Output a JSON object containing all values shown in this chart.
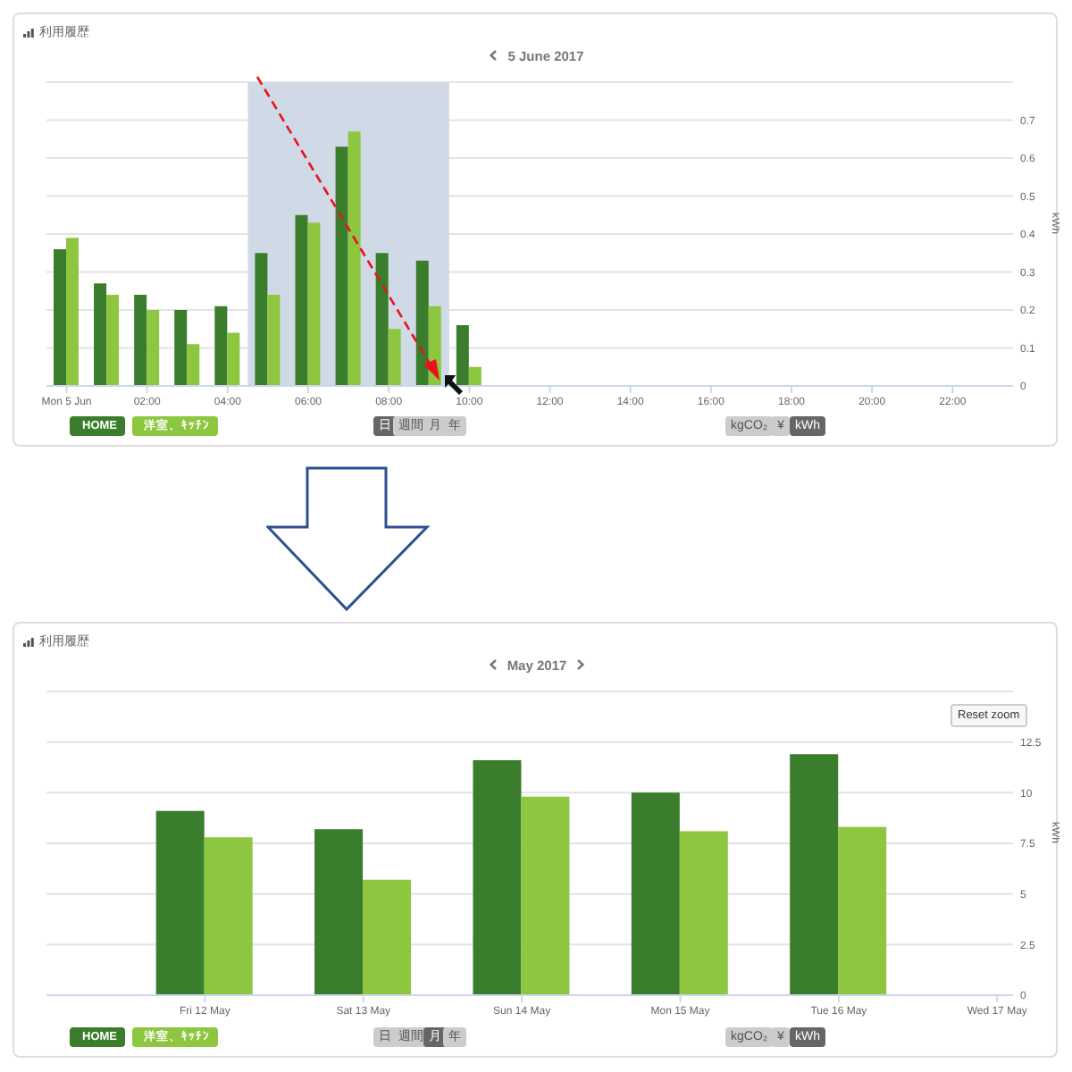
{
  "chart_data": [
    {
      "type": "bar",
      "title": "利用履歴",
      "subtitle": "5 June 2017",
      "ylabel": "kWh",
      "x": [
        0,
        1,
        2,
        3,
        4,
        5,
        6,
        7,
        8,
        9,
        10
      ],
      "series": [
        {
          "name": "HOME",
          "color": "#3a7d2c",
          "values": [
            0.36,
            0.27,
            0.24,
            0.2,
            0.21,
            0.35,
            0.45,
            0.63,
            0.35,
            0.33,
            0.16
          ]
        },
        {
          "name": "洋室、ｷｯﾁﾝ",
          "color": "#8dc63f",
          "values": [
            0.39,
            0.24,
            0.2,
            0.11,
            0.14,
            0.24,
            0.43,
            0.67,
            0.15,
            0.21,
            0.05
          ]
        }
      ],
      "xlim": [
        -0.5,
        23.5
      ],
      "xticks": [
        {
          "value": 0,
          "label": "Mon 5 Jun"
        },
        {
          "value": 2,
          "label": "02:00"
        },
        {
          "value": 4,
          "label": "04:00"
        },
        {
          "value": 6,
          "label": "06:00"
        },
        {
          "value": 8,
          "label": "08:00"
        },
        {
          "value": 10,
          "label": "10:00"
        },
        {
          "value": 12,
          "label": "12:00"
        },
        {
          "value": 14,
          "label": "14:00"
        },
        {
          "value": 16,
          "label": "16:00"
        },
        {
          "value": 18,
          "label": "18:00"
        },
        {
          "value": 20,
          "label": "20:00"
        },
        {
          "value": 22,
          "label": "22:00"
        }
      ],
      "ylim": [
        0,
        0.8
      ],
      "yticks": [
        0,
        0.1,
        0.2,
        0.3,
        0.4,
        0.5,
        0.6,
        0.7
      ],
      "bands": [
        {
          "axis": "x",
          "from": 4.5,
          "to": 9.5,
          "color": "#cfdae6"
        }
      ],
      "annotations": [
        "日",
        "週間",
        "月",
        "年",
        "kgCO₂",
        "¥",
        "kWh"
      ],
      "grid": "y",
      "legend": "bottom left"
    },
    {
      "type": "bar",
      "title": "利用履歴",
      "subtitle": "May 2017",
      "ylabel": "kWh",
      "categories": [
        "Fri 12 May",
        "Sat 13 May",
        "Sun 14 May",
        "Mon 15 May",
        "Tue 16 May",
        "Wed 17 May"
      ],
      "series": [
        {
          "name": "HOME",
          "color": "#3a7d2c",
          "values": [
            9.1,
            8.2,
            11.6,
            10.0,
            11.9,
            null
          ]
        },
        {
          "name": "洋室、ｷｯﾁﾝ",
          "color": "#8dc63f",
          "values": [
            7.8,
            5.7,
            9.8,
            8.1,
            8.3,
            null
          ]
        }
      ],
      "ylim": [
        0,
        15
      ],
      "yticks": [
        0,
        2.5,
        5,
        7.5,
        10,
        12.5
      ],
      "annotations": [
        "日",
        "週間",
        "月",
        "年",
        "kgCO₂",
        "¥",
        "kWh",
        "Reset zoom"
      ],
      "grid": "y",
      "legend": "bottom left"
    }
  ]
}
